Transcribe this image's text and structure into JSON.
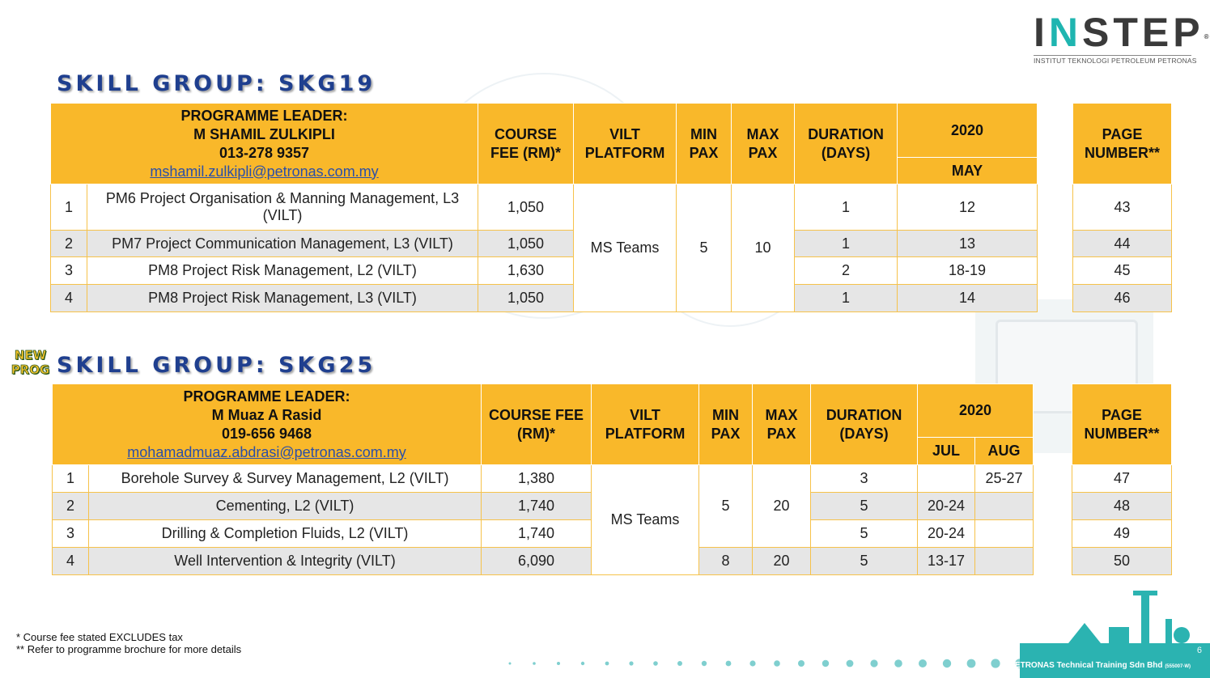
{
  "logo": {
    "name_left": "I",
    "name_accent": "N",
    "name_right": "STEP",
    "registered": "®",
    "subtitle": "INSTITUT TEKNOLOGI PETROLEUM PETRONAS"
  },
  "groups": [
    {
      "title": "SKILL GROUP: SKG19",
      "leader_label": "PROGRAMME LEADER:",
      "leader_name": "M SHAMIL ZULKIPLI",
      "leader_phone": "013-278 9357",
      "leader_email": "mshamil.zulkipli@petronas.com.my",
      "headers": {
        "fee": "COURSE FEE (RM)*",
        "platform": "VILT PLATFORM",
        "min": "MIN PAX",
        "max": "MAX PAX",
        "duration": "DURATION (DAYS)",
        "year": "2020",
        "months": [
          "MAY"
        ],
        "page": "PAGE NUMBER**"
      },
      "platform_value": "MS Teams",
      "min_value": "5",
      "max_value": "10",
      "rows": [
        {
          "no": "1",
          "title": "PM6 Project Organisation & Manning Management, L3 (VILT)",
          "fee": "1,050",
          "duration": "1",
          "dates": [
            "12"
          ],
          "page": "43"
        },
        {
          "no": "2",
          "title": "PM7 Project Communication Management, L3 (VILT)",
          "fee": "1,050",
          "duration": "1",
          "dates": [
            "13"
          ],
          "page": "44"
        },
        {
          "no": "3",
          "title": "PM8 Project Risk Management, L2 (VILT)",
          "fee": "1,630",
          "duration": "2",
          "dates": [
            "18-19"
          ],
          "page": "45"
        },
        {
          "no": "4",
          "title": "PM8 Project Risk Management, L3 (VILT)",
          "fee": "1,050",
          "duration": "1",
          "dates": [
            "14"
          ],
          "page": "46"
        }
      ]
    },
    {
      "badge_line1": "NEW",
      "badge_line2": "PROG",
      "title": "SKILL GROUP: SKG25",
      "leader_label": "PROGRAMME LEADER:",
      "leader_name": "M Muaz A Rasid",
      "leader_phone": "019-656 9468",
      "leader_email": "mohamadmuaz.abdrasi@petronas.com.my",
      "headers": {
        "fee": "COURSE FEE (RM)*",
        "platform": "VILT PLATFORM",
        "min": "MIN PAX",
        "max": "MAX PAX",
        "duration": "DURATION (DAYS)",
        "year": "2020",
        "months": [
          "JUL",
          "AUG"
        ],
        "page": "PAGE NUMBER**"
      },
      "platform_value": "MS Teams",
      "min_value_a": "5",
      "max_value_a": "20",
      "rows": [
        {
          "no": "1",
          "title": "Borehole Survey & Survey Management, L2 (VILT)",
          "fee": "1,380",
          "duration": "3",
          "dates": [
            "",
            "25-27"
          ],
          "page": "47"
        },
        {
          "no": "2",
          "title": "Cementing, L2 (VILT)",
          "fee": "1,740",
          "duration": "5",
          "dates": [
            "20-24",
            ""
          ],
          "page": "48"
        },
        {
          "no": "3",
          "title": "Drilling & Completion Fluids, L2 (VILT)",
          "fee": "1,740",
          "duration": "5",
          "dates": [
            "20-24",
            ""
          ],
          "page": "49"
        },
        {
          "no": "4",
          "title": "Well Intervention & Integrity (VILT)",
          "fee": "6,090",
          "min": "8",
          "max": "20",
          "duration": "5",
          "dates": [
            "13-17",
            ""
          ],
          "page": "50"
        }
      ]
    }
  ],
  "footnotes": [
    "* Course fee stated EXCLUDES tax",
    "** Refer to programme brochure for more details"
  ],
  "footer": {
    "company": "PETRONAS Technical Training Sdn Bhd",
    "reg_no": "(555007-W)",
    "page": "6"
  },
  "colors": {
    "header_fill": "#f9b82a",
    "title_blue": "#1f3f8f",
    "row_shade": "#e6e6e6",
    "logo_accent": "#1fb5b0",
    "footer_teal": "#2bb3b1"
  }
}
